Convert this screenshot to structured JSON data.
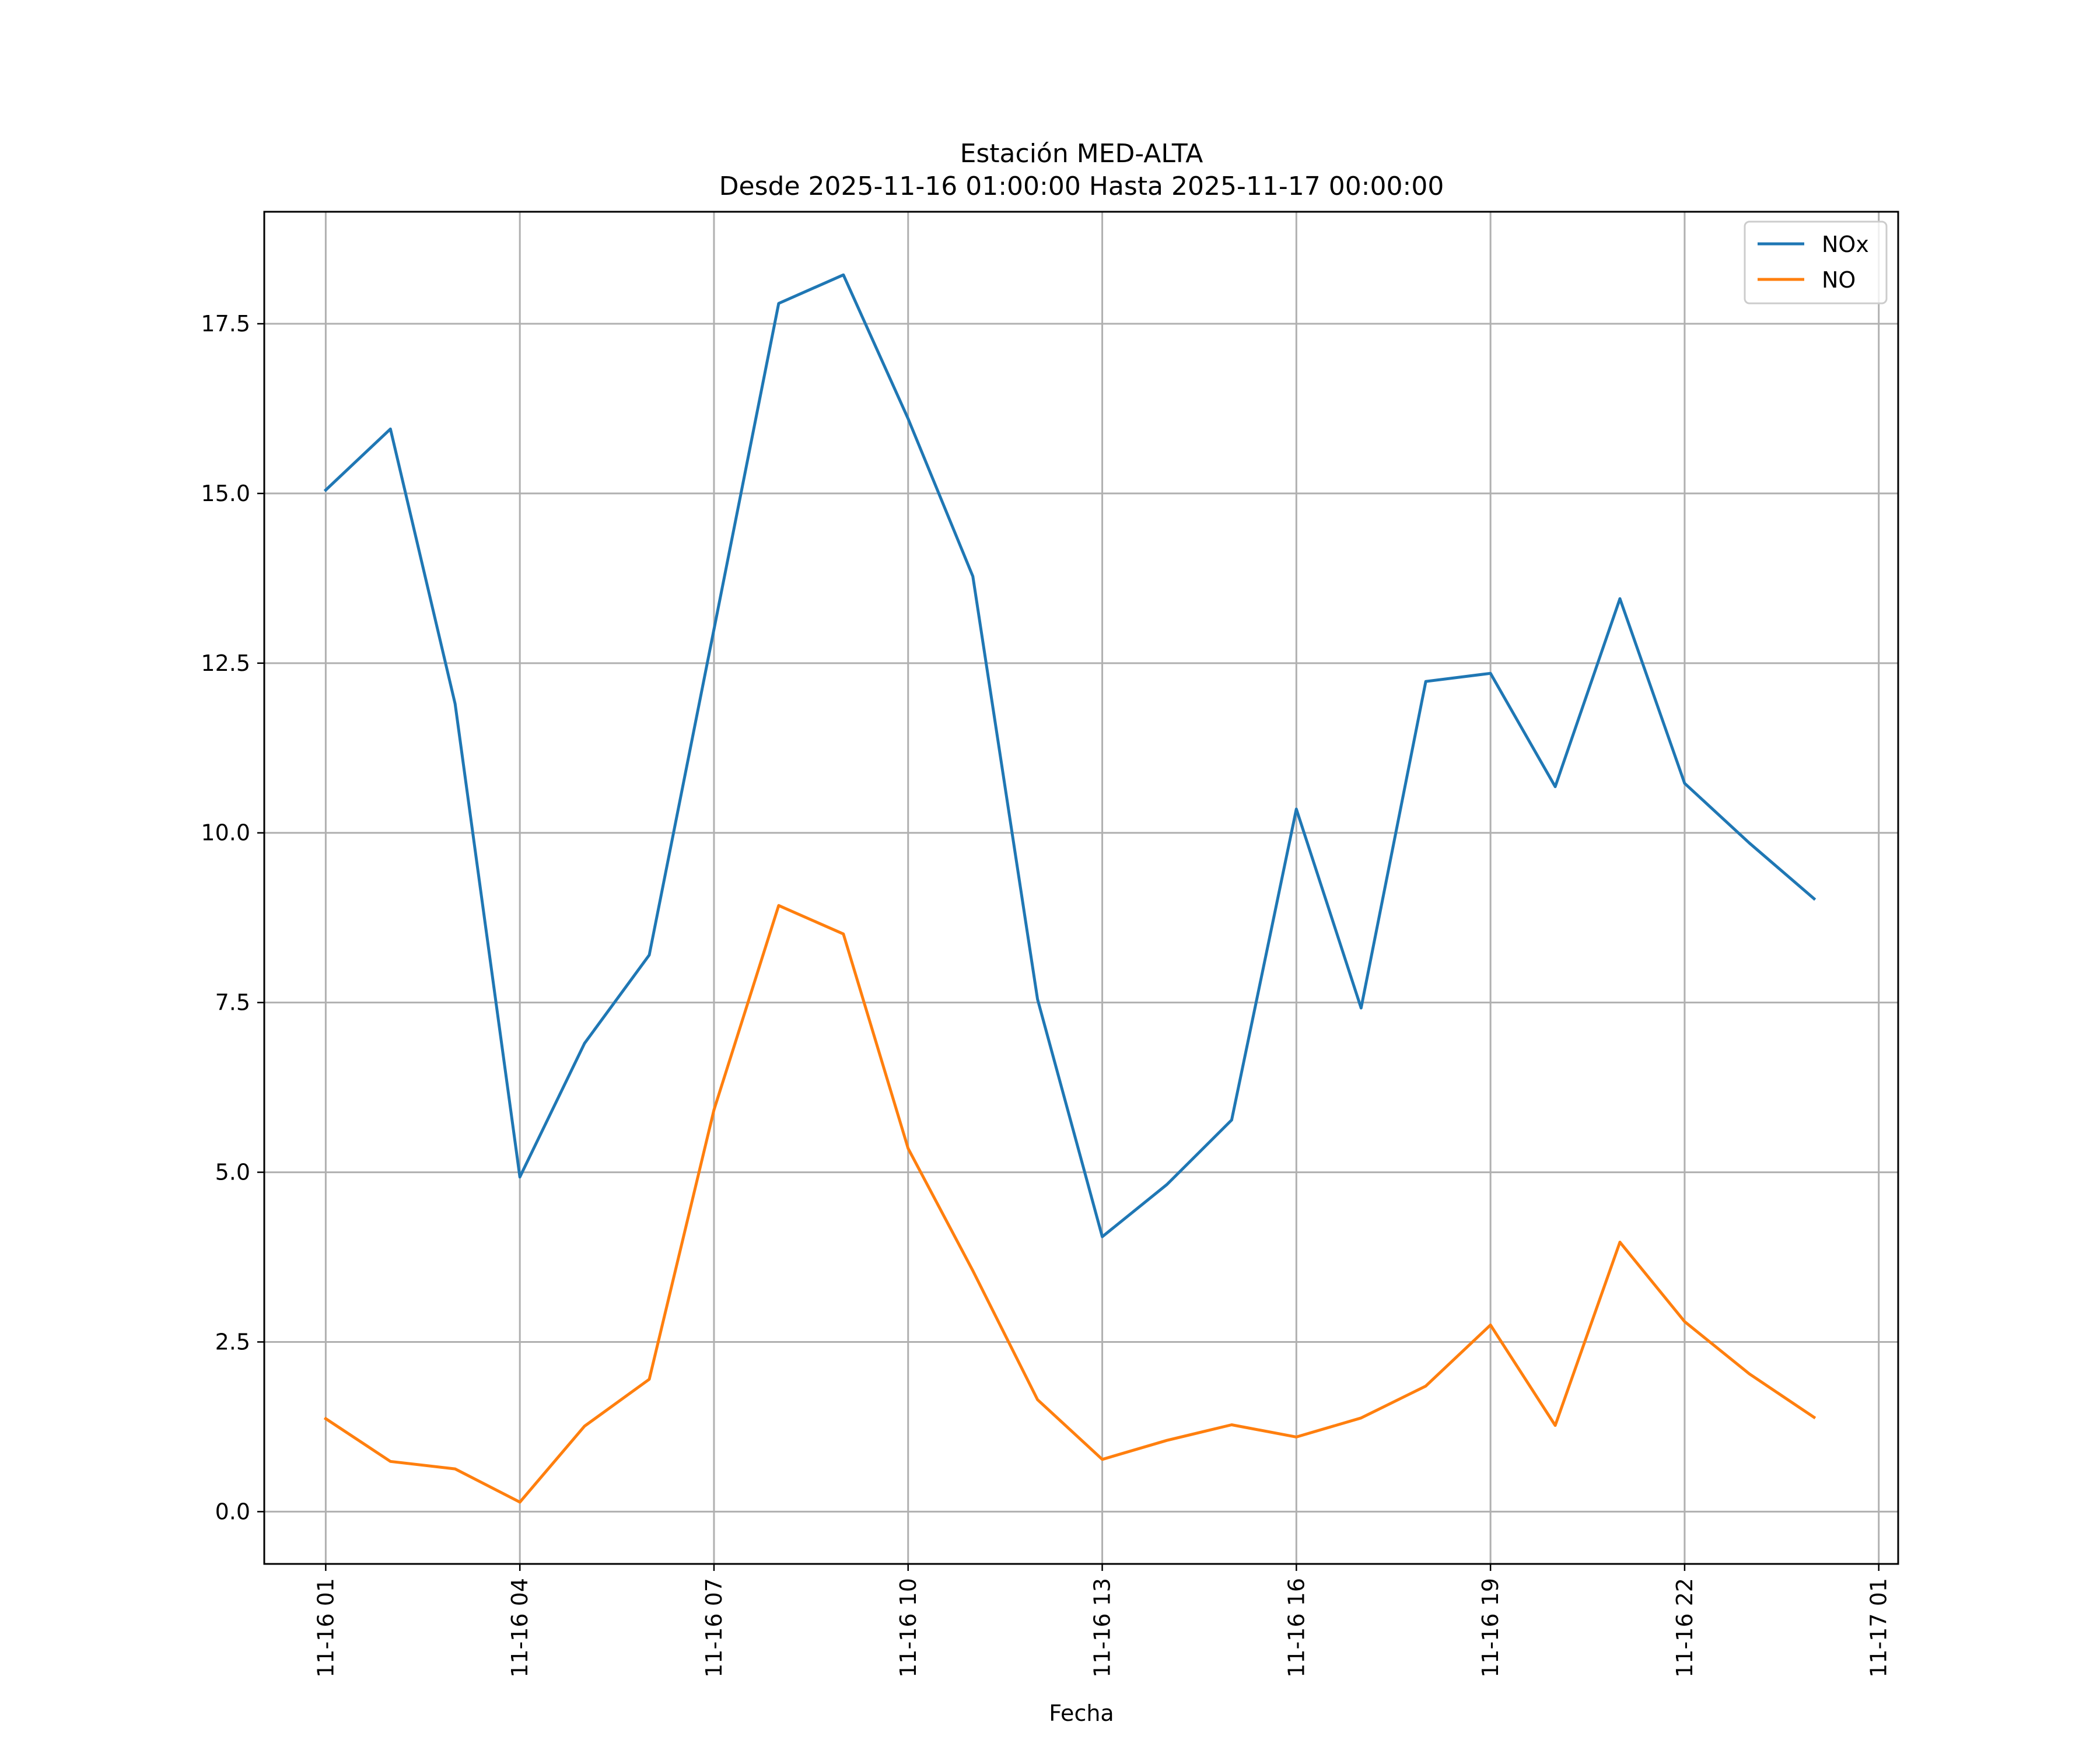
{
  "chart_data": {
    "type": "line",
    "title": "Estación MED-ALTA",
    "subtitle": "Desde 2025-11-16 01:00:00 Hasta 2025-11-17 00:00:00",
    "xlabel": "Fecha",
    "ylabel": "",
    "x": [
      "11-16 01",
      "11-16 02",
      "11-16 03",
      "11-16 04",
      "11-16 05",
      "11-16 06",
      "11-16 07",
      "11-16 08",
      "11-16 09",
      "11-16 10",
      "11-16 11",
      "11-16 12",
      "11-16 13",
      "11-16 14",
      "11-16 15",
      "11-16 16",
      "11-16 17",
      "11-16 18",
      "11-16 19",
      "11-16 20",
      "11-16 21",
      "11-16 22",
      "11-16 23",
      "11-17 00"
    ],
    "xlim_hours": [
      -0.95,
      24.3
    ],
    "ylim": [
      -0.77,
      19.15
    ],
    "x_ticks": [
      {
        "label": "11-16 01",
        "hour": 0
      },
      {
        "label": "11-16 04",
        "hour": 3
      },
      {
        "label": "11-16 07",
        "hour": 6
      },
      {
        "label": "11-16 10",
        "hour": 9
      },
      {
        "label": "11-16 13",
        "hour": 12
      },
      {
        "label": "11-16 16",
        "hour": 15
      },
      {
        "label": "11-16 19",
        "hour": 18
      },
      {
        "label": "11-16 22",
        "hour": 21
      },
      {
        "label": "11-17 01",
        "hour": 24
      }
    ],
    "y_ticks": [
      0.0,
      2.5,
      5.0,
      7.5,
      10.0,
      12.5,
      15.0,
      17.5
    ],
    "y_tick_labels": [
      "0.0",
      "2.5",
      "5.0",
      "7.5",
      "10.0",
      "12.5",
      "15.0",
      "17.5"
    ],
    "grid": true,
    "legend_position": "top-right",
    "series": [
      {
        "name": "NOx",
        "color": "#1f77b4",
        "values": [
          15.05,
          15.95,
          11.9,
          4.93,
          6.9,
          8.2,
          13.0,
          17.8,
          18.22,
          16.1,
          13.78,
          7.55,
          4.05,
          4.82,
          5.77,
          10.35,
          7.42,
          12.23,
          12.35,
          10.68,
          13.45,
          10.73,
          9.85,
          9.03
        ]
      },
      {
        "name": "NO",
        "color": "#ff7f0e",
        "values": [
          1.37,
          0.74,
          0.63,
          0.14,
          1.26,
          1.95,
          5.92,
          8.93,
          8.51,
          5.35,
          3.55,
          1.65,
          0.77,
          1.05,
          1.28,
          1.1,
          1.38,
          1.85,
          2.75,
          1.27,
          3.97,
          2.8,
          2.03,
          1.39
        ]
      }
    ]
  }
}
